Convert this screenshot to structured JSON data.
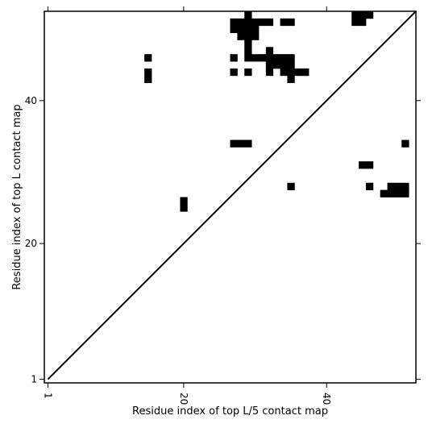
{
  "chart_data": {
    "type": "heatmap",
    "title": "",
    "xlabel": "Residue index of top L/5 contact map",
    "ylabel": "Residue index of top L contact map",
    "xlim": [
      0.5,
      52.5
    ],
    "ylim": [
      0.5,
      52.5
    ],
    "x_ticks": [
      1,
      20,
      40
    ],
    "y_ticks": [
      1,
      20,
      40
    ],
    "x_tick_labels": [
      "1",
      "20",
      "40"
    ],
    "y_tick_labels": [
      "1",
      "20",
      "40"
    ],
    "diagonal_line": true,
    "cell_color": "#000000",
    "cells": [
      [
        29,
        52
      ],
      [
        44,
        52
      ],
      [
        45,
        52
      ],
      [
        46,
        52
      ],
      [
        27,
        51
      ],
      [
        28,
        51
      ],
      [
        29,
        51
      ],
      [
        30,
        51
      ],
      [
        31,
        51
      ],
      [
        32,
        51
      ],
      [
        34,
        51
      ],
      [
        35,
        51
      ],
      [
        44,
        51
      ],
      [
        45,
        51
      ],
      [
        27,
        50
      ],
      [
        28,
        50
      ],
      [
        29,
        50
      ],
      [
        30,
        50
      ],
      [
        28,
        49
      ],
      [
        29,
        49
      ],
      [
        30,
        49
      ],
      [
        29,
        48
      ],
      [
        29,
        47
      ],
      [
        32,
        47
      ],
      [
        15,
        46
      ],
      [
        27,
        46
      ],
      [
        29,
        46
      ],
      [
        30,
        46
      ],
      [
        31,
        46
      ],
      [
        32,
        46
      ],
      [
        33,
        46
      ],
      [
        34,
        46
      ],
      [
        35,
        46
      ],
      [
        32,
        45
      ],
      [
        33,
        45
      ],
      [
        34,
        45
      ],
      [
        35,
        45
      ],
      [
        15,
        44
      ],
      [
        27,
        44
      ],
      [
        29,
        44
      ],
      [
        32,
        44
      ],
      [
        34,
        44
      ],
      [
        35,
        44
      ],
      [
        36,
        44
      ],
      [
        37,
        44
      ],
      [
        15,
        43
      ],
      [
        35,
        43
      ],
      [
        51,
        34
      ],
      [
        27,
        34
      ],
      [
        28,
        34
      ],
      [
        29,
        34
      ],
      [
        45,
        31
      ],
      [
        46,
        31
      ],
      [
        35,
        28
      ],
      [
        46,
        28
      ],
      [
        49,
        28
      ],
      [
        50,
        28
      ],
      [
        51,
        28
      ],
      [
        48,
        27
      ],
      [
        49,
        27
      ],
      [
        50,
        27
      ],
      [
        51,
        27
      ],
      [
        20,
        26
      ],
      [
        20,
        25
      ]
    ]
  }
}
